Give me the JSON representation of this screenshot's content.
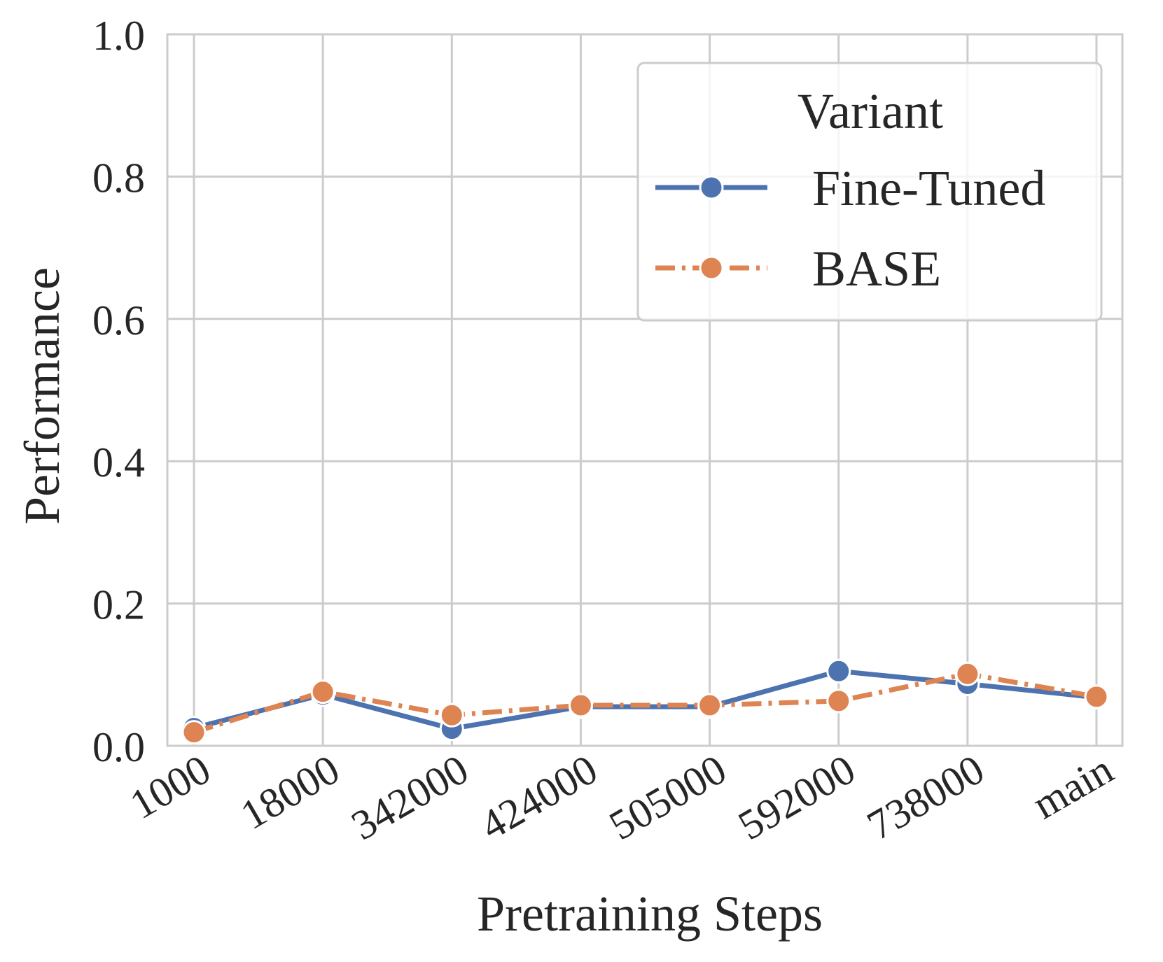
{
  "chart_data": {
    "type": "line",
    "title": "",
    "xlabel": "Pretraining Steps",
    "ylabel": "Performance",
    "categories": [
      "1000",
      "18000",
      "342000",
      "424000",
      "505000",
      "592000",
      "738000",
      "main"
    ],
    "ylim": [
      0.0,
      1.0
    ],
    "yticks": [
      "0.0",
      "0.2",
      "0.4",
      "0.6",
      "0.8",
      "1.0"
    ],
    "grid": true,
    "legend": {
      "title": "Variant",
      "placement": "top-right"
    },
    "series": [
      {
        "name": "Fine-Tuned",
        "color": "#4C72B0",
        "line_style": "solid",
        "values": [
          0.025,
          0.072,
          0.024,
          0.055,
          0.055,
          0.105,
          0.087,
          0.068
        ]
      },
      {
        "name": "BASE",
        "color": "#DD8452",
        "line_style": "dashdot",
        "values": [
          0.019,
          0.076,
          0.043,
          0.057,
          0.057,
          0.063,
          0.101,
          0.069
        ]
      }
    ]
  }
}
